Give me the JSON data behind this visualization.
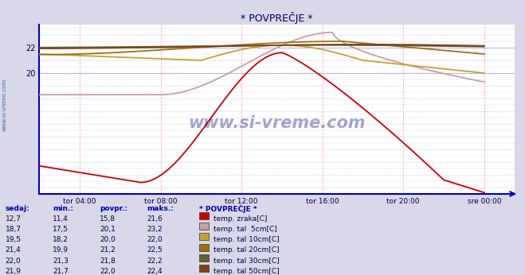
{
  "title": "* POVPREČJE *",
  "bg_color": "#d8d8e8",
  "plot_bg_color": "#ffffff",
  "grid_color_v": "#ffb0b0",
  "grid_color_h": "#c0c0ff",
  "x_labels": [
    "tor 04:00",
    "tor 08:00",
    "tor 12:00",
    "tor 16:00",
    "tor 20:00",
    "sre 00:00"
  ],
  "y_ticks": [
    20,
    22
  ],
  "y_min": 10.5,
  "y_max": 23.8,
  "series": [
    {
      "name": "temp. zraka[C]",
      "color": "#cc0000",
      "sedaj": "12,7",
      "min": "11,4",
      "povpr": "15,8",
      "maks": "21,6"
    },
    {
      "name": "temp. tal  5cm[C]",
      "color": "#c8a0a0",
      "sedaj": "18,7",
      "min": "17,5",
      "povpr": "20,1",
      "maks": "23,2"
    },
    {
      "name": "temp. tal 10cm[C]",
      "color": "#c8a030",
      "sedaj": "19,5",
      "min": "18,2",
      "povpr": "20,0",
      "maks": "22,0"
    },
    {
      "name": "temp. tal 20cm[C]",
      "color": "#a07010",
      "sedaj": "21,4",
      "min": "19,9",
      "povpr": "21,2",
      "maks": "22,5"
    },
    {
      "name": "temp. tal 30cm[C]",
      "color": "#606030",
      "sedaj": "22,0",
      "min": "21,3",
      "povpr": "21,8",
      "maks": "22,2"
    },
    {
      "name": "temp. tal 50cm[C]",
      "color": "#804010",
      "sedaj": "21,9",
      "min": "21,7",
      "povpr": "22,0",
      "maks": "22,4"
    }
  ],
  "table_headers": [
    "sedaj:",
    "min.:",
    "povpr.:",
    "maks.:",
    "* POVPREČJE *"
  ],
  "watermark": "www.si-vreme.com",
  "side_label": "www.si-vreme.com"
}
